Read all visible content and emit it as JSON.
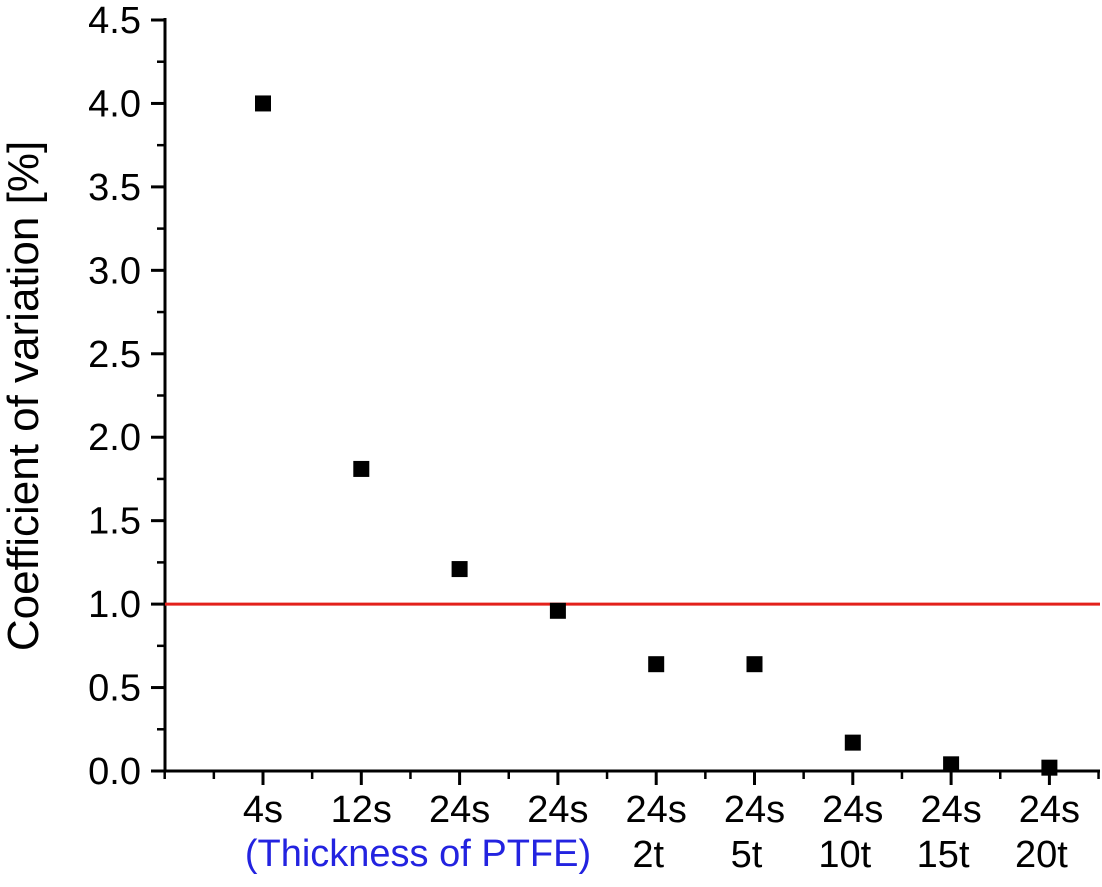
{
  "chart_data": {
    "type": "scatter",
    "title": "",
    "xlabel": "",
    "ylabel": "Coefficient of variation [%]",
    "categories": [
      [
        "4s"
      ],
      [
        "12s"
      ],
      [
        "24s"
      ],
      [
        "24s"
      ],
      [
        "24s",
        "2t"
      ],
      [
        "24s",
        "5t"
      ],
      [
        "24s",
        "10t"
      ],
      [
        "24s",
        "15t"
      ],
      [
        "24s",
        "20t"
      ]
    ],
    "values": [
      4.0,
      1.81,
      1.21,
      0.96,
      0.64,
      0.64,
      0.17,
      0.04,
      0.02
    ],
    "ylim": [
      0,
      4.5
    ],
    "yticks": [
      "0.0",
      "0.5",
      "1.0",
      "1.5",
      "2.0",
      "2.5",
      "3.0",
      "3.5",
      "4.0",
      "4.5"
    ],
    "reference_line": {
      "y": 1.0,
      "color": "#e3201b"
    },
    "x_note": {
      "text": "(Thickness of PTFE)",
      "color": "#2323e0"
    },
    "marker_color": "#000000",
    "grid": false
  }
}
